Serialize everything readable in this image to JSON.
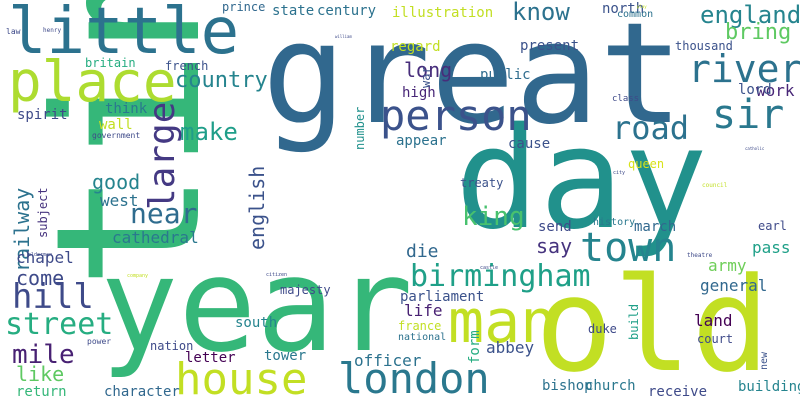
{
  "words": [
    {
      "text": "time",
      "color": "#35b779"
    },
    {
      "text": "great",
      "color": "#31688e"
    },
    {
      "text": "year",
      "color": "#35b779"
    },
    {
      "text": "day",
      "color": "#21918c"
    },
    {
      "text": "old",
      "color": "#c2df23"
    },
    {
      "text": "little",
      "color": "#2c728e"
    },
    {
      "text": "place",
      "color": "#addc30"
    },
    {
      "text": "man",
      "color": "#c2df23"
    },
    {
      "text": "london",
      "color": "#2a788e"
    },
    {
      "text": "person",
      "color": "#3b528b"
    },
    {
      "text": "house",
      "color": "#c2df23"
    },
    {
      "text": "town",
      "color": "#25848e"
    },
    {
      "text": "sir",
      "color": "#2a788e"
    },
    {
      "text": "river",
      "color": "#2c728e"
    },
    {
      "text": "road",
      "color": "#2c728e"
    },
    {
      "text": "birmingham",
      "color": "#1fa088"
    },
    {
      "text": "street",
      "color": "#26ad81"
    },
    {
      "text": "hill",
      "color": "#3e4a89"
    },
    {
      "text": "mile",
      "color": "#482173"
    },
    {
      "text": "railway",
      "color": "#2c728e"
    },
    {
      "text": "large",
      "color": "#443983"
    },
    {
      "text": "near",
      "color": "#2f6c8e"
    },
    {
      "text": "make",
      "color": "#1f9e89"
    },
    {
      "text": "england",
      "color": "#25848e"
    },
    {
      "text": "king",
      "color": "#48c16e"
    },
    {
      "text": "know",
      "color": "#2c728e"
    },
    {
      "text": "bring",
      "color": "#5ec962"
    },
    {
      "text": "country",
      "color": "#25848e"
    },
    {
      "text": "english",
      "color": "#3b528b"
    },
    {
      "text": "good",
      "color": "#25848e"
    },
    {
      "text": "long",
      "color": "#472d7b"
    },
    {
      "text": "come",
      "color": "#3e4a89"
    },
    {
      "text": "say",
      "color": "#46337e"
    },
    {
      "text": "like",
      "color": "#5ec962"
    },
    {
      "text": "chapel",
      "color": "#3e4a89"
    },
    {
      "text": "cathedral",
      "color": "#2a788e"
    },
    {
      "text": "west",
      "color": "#2c728e"
    },
    {
      "text": "die",
      "color": "#31688e"
    },
    {
      "text": "life",
      "color": "#482173"
    },
    {
      "text": "parliament",
      "color": "#3b528b"
    },
    {
      "text": "general",
      "color": "#31688e"
    },
    {
      "text": "land",
      "color": "#440154"
    },
    {
      "text": "army",
      "color": "#6ece58"
    },
    {
      "text": "pass",
      "color": "#1fa088"
    },
    {
      "text": "work",
      "color": "#482677"
    },
    {
      "text": "lord",
      "color": "#3b528b"
    },
    {
      "text": "abbey",
      "color": "#3b528b"
    },
    {
      "text": "officer",
      "color": "#2c728e"
    },
    {
      "text": "bishop",
      "color": "#2c728e"
    },
    {
      "text": "church",
      "color": "#2a788e"
    },
    {
      "text": "receive",
      "color": "#3e4a89"
    },
    {
      "text": "building",
      "color": "#25848e"
    },
    {
      "text": "character",
      "color": "#31688e"
    },
    {
      "text": "return",
      "color": "#35b779"
    },
    {
      "text": "tower",
      "color": "#2a788e"
    },
    {
      "text": "letter",
      "color": "#440154"
    },
    {
      "text": "south",
      "color": "#25848e"
    },
    {
      "text": "nation",
      "color": "#3e4a89"
    },
    {
      "text": "majesty",
      "color": "#3e4a89"
    },
    {
      "text": "form",
      "color": "#26ad81"
    },
    {
      "text": "send",
      "color": "#3e4a89"
    },
    {
      "text": "march",
      "color": "#31688e"
    },
    {
      "text": "treaty",
      "color": "#3b528b"
    },
    {
      "text": "cause",
      "color": "#3b528b"
    },
    {
      "text": "appear",
      "color": "#2c728e"
    },
    {
      "text": "duke",
      "color": "#3e4a89"
    },
    {
      "text": "queen",
      "color": "#d8e219"
    },
    {
      "text": "state",
      "color": "#2c728e"
    },
    {
      "text": "century",
      "color": "#2c728e"
    },
    {
      "text": "illustration",
      "color": "#c2df23"
    },
    {
      "text": "north",
      "color": "#3b528b"
    },
    {
      "text": "prince",
      "color": "#31688e"
    },
    {
      "text": "regard",
      "color": "#c2df23"
    },
    {
      "text": "present",
      "color": "#3b528b"
    },
    {
      "text": "public",
      "color": "#2f6c8e"
    },
    {
      "text": "high",
      "color": "#482677"
    },
    {
      "text": "war",
      "color": "#3b528b"
    },
    {
      "text": "number",
      "color": "#21918c"
    },
    {
      "text": "thousand",
      "color": "#3b528b"
    },
    {
      "text": "common",
      "color": "#2c728e"
    },
    {
      "text": "britain",
      "color": "#26ad81"
    },
    {
      "text": "french",
      "color": "#3b528b"
    },
    {
      "text": "spirit",
      "color": "#3e4a89"
    },
    {
      "text": "think",
      "color": "#2a788e"
    },
    {
      "text": "wall",
      "color": "#c2df23"
    },
    {
      "text": "subject",
      "color": "#46337e"
    },
    {
      "text": "build",
      "color": "#1fa088"
    },
    {
      "text": "court",
      "color": "#3e4a89"
    },
    {
      "text": "history",
      "color": "#2a788e"
    },
    {
      "text": "france",
      "color": "#c2df23"
    },
    {
      "text": "national",
      "color": "#2c728e"
    },
    {
      "text": "earl",
      "color": "#3e4a89"
    },
    {
      "text": "new",
      "color": "#3b528b"
    },
    {
      "text": "class",
      "color": "#3e4a89"
    },
    {
      "text": "government",
      "color": "#3e4a89"
    },
    {
      "text": "power",
      "color": "#3e4a89"
    },
    {
      "text": "law",
      "color": "#3e4a89"
    },
    {
      "text": "henry",
      "color": "#3e4a89"
    },
    {
      "text": "council",
      "color": "#c2df23"
    },
    {
      "text": "theatre",
      "color": "#3e4a89"
    },
    {
      "text": "city",
      "color": "#3e4a89"
    },
    {
      "text": "citizen",
      "color": "#3e4a89"
    },
    {
      "text": "castle",
      "color": "#3e4a89"
    },
    {
      "text": "alderman",
      "color": "#3e4a89"
    },
    {
      "text": "company",
      "color": "#c2df23"
    },
    {
      "text": "william",
      "color": "#3e4a89"
    },
    {
      "text": "play",
      "color": "#c2df23"
    },
    {
      "text": "catholic",
      "color": "#3e4a89"
    }
  ]
}
